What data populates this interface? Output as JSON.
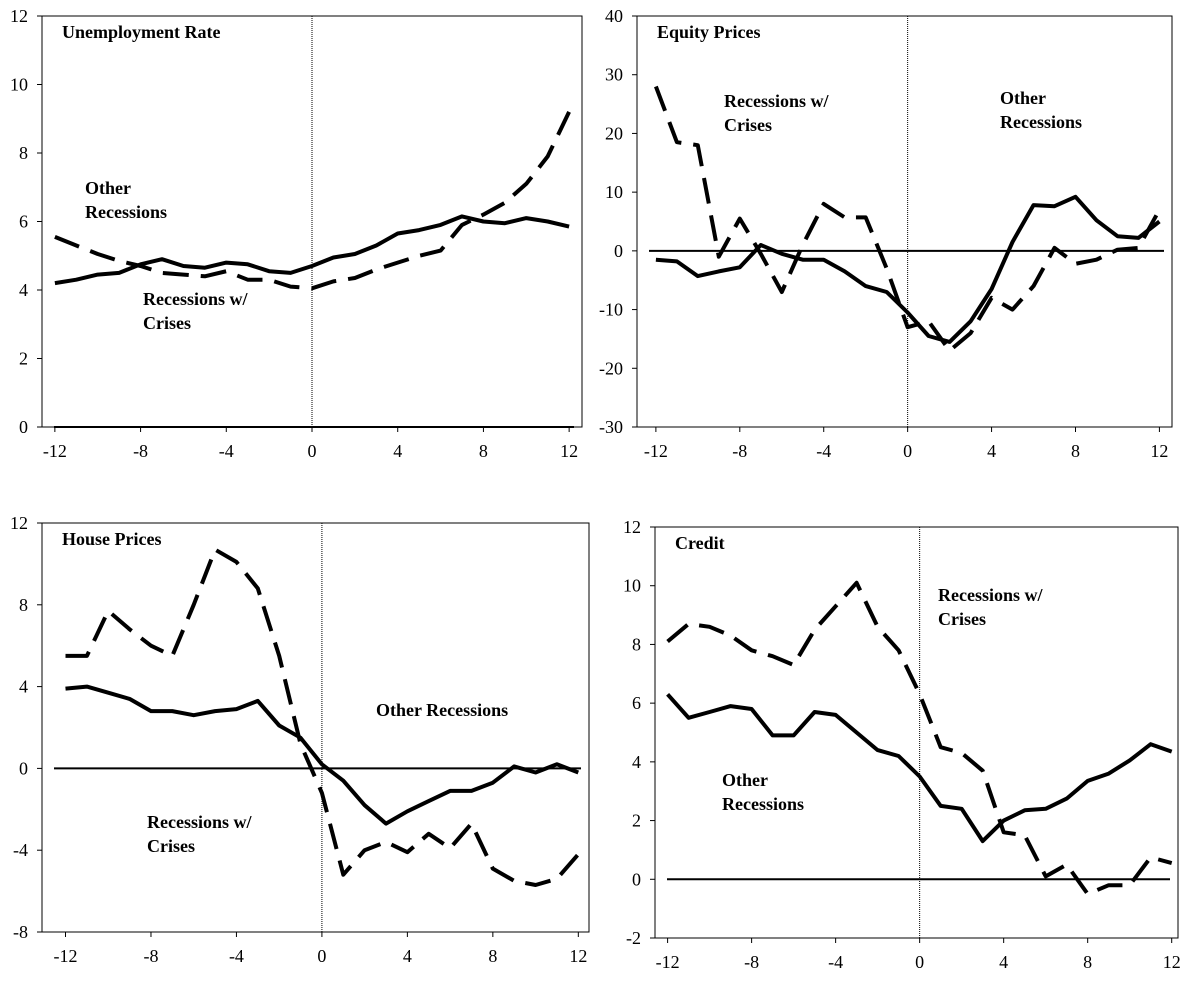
{
  "chart_data": [
    {
      "type": "line",
      "title": "Unemployment Rate",
      "x": [
        -12,
        -11,
        -10,
        -9,
        -8,
        -7,
        -6,
        -5,
        -4,
        -3,
        -2,
        -1,
        0,
        1,
        2,
        3,
        4,
        5,
        6,
        7,
        8,
        9,
        10,
        11,
        12
      ],
      "series": [
        {
          "name": "Other Recessions",
          "color": "#000000",
          "style": "solid",
          "values": [
            4.2,
            4.3,
            4.45,
            4.5,
            4.75,
            4.9,
            4.7,
            4.65,
            4.8,
            4.75,
            4.55,
            4.5,
            4.7,
            4.95,
            5.05,
            5.3,
            5.65,
            5.75,
            5.9,
            6.15,
            6.0,
            5.95,
            6.1,
            6.0,
            5.85
          ]
        },
        {
          "name": "Recessions w/ Crises",
          "color": "#000000",
          "style": "dashed",
          "values": [
            5.55,
            5.3,
            5.05,
            4.85,
            4.7,
            4.5,
            4.45,
            4.4,
            4.55,
            4.3,
            4.3,
            4.1,
            4.05,
            4.25,
            4.35,
            4.6,
            4.8,
            5.0,
            5.15,
            5.9,
            6.2,
            6.55,
            7.1,
            7.9,
            9.2
          ]
        }
      ],
      "xlim": [
        -12.6,
        12.6
      ],
      "ylim": [
        0,
        12
      ],
      "xticks": [
        -12,
        -8,
        -4,
        0,
        4,
        8,
        12
      ],
      "yticks": [
        0,
        2,
        4,
        6,
        8,
        10,
        12
      ],
      "grid": false
    },
    {
      "type": "line",
      "title": "Equity Prices",
      "x": [
        -12,
        -11,
        -10,
        -9,
        -8,
        -7,
        -6,
        -5,
        -4,
        -3,
        -2,
        -1,
        0,
        1,
        2,
        3,
        4,
        5,
        6,
        7,
        8,
        9,
        10,
        11,
        12
      ],
      "series": [
        {
          "name": "Recessions w/ Crises",
          "color": "#000000",
          "style": "dashed",
          "values": [
            28,
            18.5,
            18,
            -1,
            5.5,
            -0.5,
            -7,
            1,
            8,
            5.7,
            5.7,
            -3,
            -13,
            -12,
            -17,
            -14,
            -8,
            -10,
            -6,
            0.5,
            -2.2,
            -1.5,
            0.2,
            0.5,
            7
          ]
        },
        {
          "name": "Other Recessions",
          "color": "#000000",
          "style": "solid",
          "values": [
            -1.5,
            -1.8,
            -4.3,
            -3.5,
            -2.8,
            1,
            -0.5,
            -1.5,
            -1.5,
            -3.5,
            -6,
            -7,
            -10.5,
            -14.5,
            -15.5,
            -12,
            -6.5,
            1.5,
            7.8,
            7.6,
            9.2,
            5.2,
            2.5,
            2.2,
            5
          ]
        }
      ],
      "xlim": [
        -12.9,
        12.6
      ],
      "ylim": [
        -30,
        40
      ],
      "xticks": [
        -12,
        -8,
        -4,
        0,
        4,
        8,
        12
      ],
      "yticks": [
        -30,
        -20,
        -10,
        0,
        10,
        20,
        30,
        40
      ],
      "grid": false
    },
    {
      "type": "line",
      "title": "House Prices",
      "x": [
        -12,
        -11,
        -10,
        -9,
        -8,
        -7,
        -6,
        -5,
        -4,
        -3,
        -2,
        -1,
        0,
        1,
        2,
        3,
        4,
        5,
        6,
        7,
        8,
        9,
        10,
        11,
        12
      ],
      "series": [
        {
          "name": "Other Recessions",
          "color": "#000000",
          "style": "solid",
          "values": [
            3.9,
            4.0,
            3.7,
            3.4,
            2.8,
            2.8,
            2.6,
            2.8,
            2.9,
            3.3,
            2.1,
            1.5,
            0.2,
            -0.6,
            -1.8,
            -2.7,
            -2.1,
            -1.6,
            -1.1,
            -1.1,
            -0.7,
            0.1,
            -0.2,
            0.2,
            -0.2
          ]
        },
        {
          "name": "Recessions w/ Crises",
          "color": "#000000",
          "style": "dashed",
          "values": [
            5.5,
            5.5,
            7.7,
            6.8,
            6.0,
            5.5,
            8.0,
            10.7,
            10.1,
            8.8,
            5.5,
            1.2,
            -1.2,
            -5.2,
            -4.0,
            -3.6,
            -4.1,
            -3.2,
            -3.9,
            -2.7,
            -4.9,
            -5.5,
            -5.7,
            -5.4,
            -4.2
          ]
        }
      ],
      "xlim": [
        -13.1,
        12.5
      ],
      "ylim": [
        -8,
        12
      ],
      "xticks": [
        -12,
        -8,
        -4,
        0,
        4,
        8,
        12
      ],
      "yticks": [
        -8,
        -4,
        0,
        4,
        8,
        12
      ],
      "grid": false
    },
    {
      "type": "line",
      "title": "Credit",
      "x": [
        -12,
        -11,
        -10,
        -9,
        -8,
        -7,
        -6,
        -5,
        -4,
        -3,
        -2,
        -1,
        0,
        1,
        2,
        3,
        4,
        5,
        6,
        7,
        8,
        9,
        10,
        11,
        12
      ],
      "series": [
        {
          "name": "Recessions w/ Crises",
          "color": "#000000",
          "style": "dashed",
          "values": [
            8.1,
            8.7,
            8.6,
            8.3,
            7.8,
            7.6,
            7.3,
            8.5,
            9.3,
            10.1,
            8.6,
            7.8,
            6.3,
            4.5,
            4.3,
            3.7,
            1.6,
            1.5,
            0.1,
            0.5,
            -0.5,
            -0.2,
            -0.2,
            0.75,
            0.55
          ]
        },
        {
          "name": "Other Recessions",
          "color": "#000000",
          "style": "solid",
          "values": [
            6.3,
            5.5,
            5.7,
            5.9,
            5.8,
            4.9,
            4.9,
            5.7,
            5.6,
            5.0,
            4.4,
            4.2,
            3.5,
            2.5,
            2.4,
            1.3,
            2.0,
            2.35,
            2.4,
            2.75,
            3.35,
            3.6,
            4.05,
            4.6,
            4.35
          ]
        }
      ],
      "xlim": [
        -12.6,
        12.3
      ],
      "ylim": [
        -2,
        12
      ],
      "xticks": [
        -12,
        -8,
        -4,
        0,
        4,
        8,
        12
      ],
      "yticks": [
        -2,
        0,
        2,
        4,
        6,
        8,
        10,
        12
      ],
      "grid": false
    }
  ]
}
